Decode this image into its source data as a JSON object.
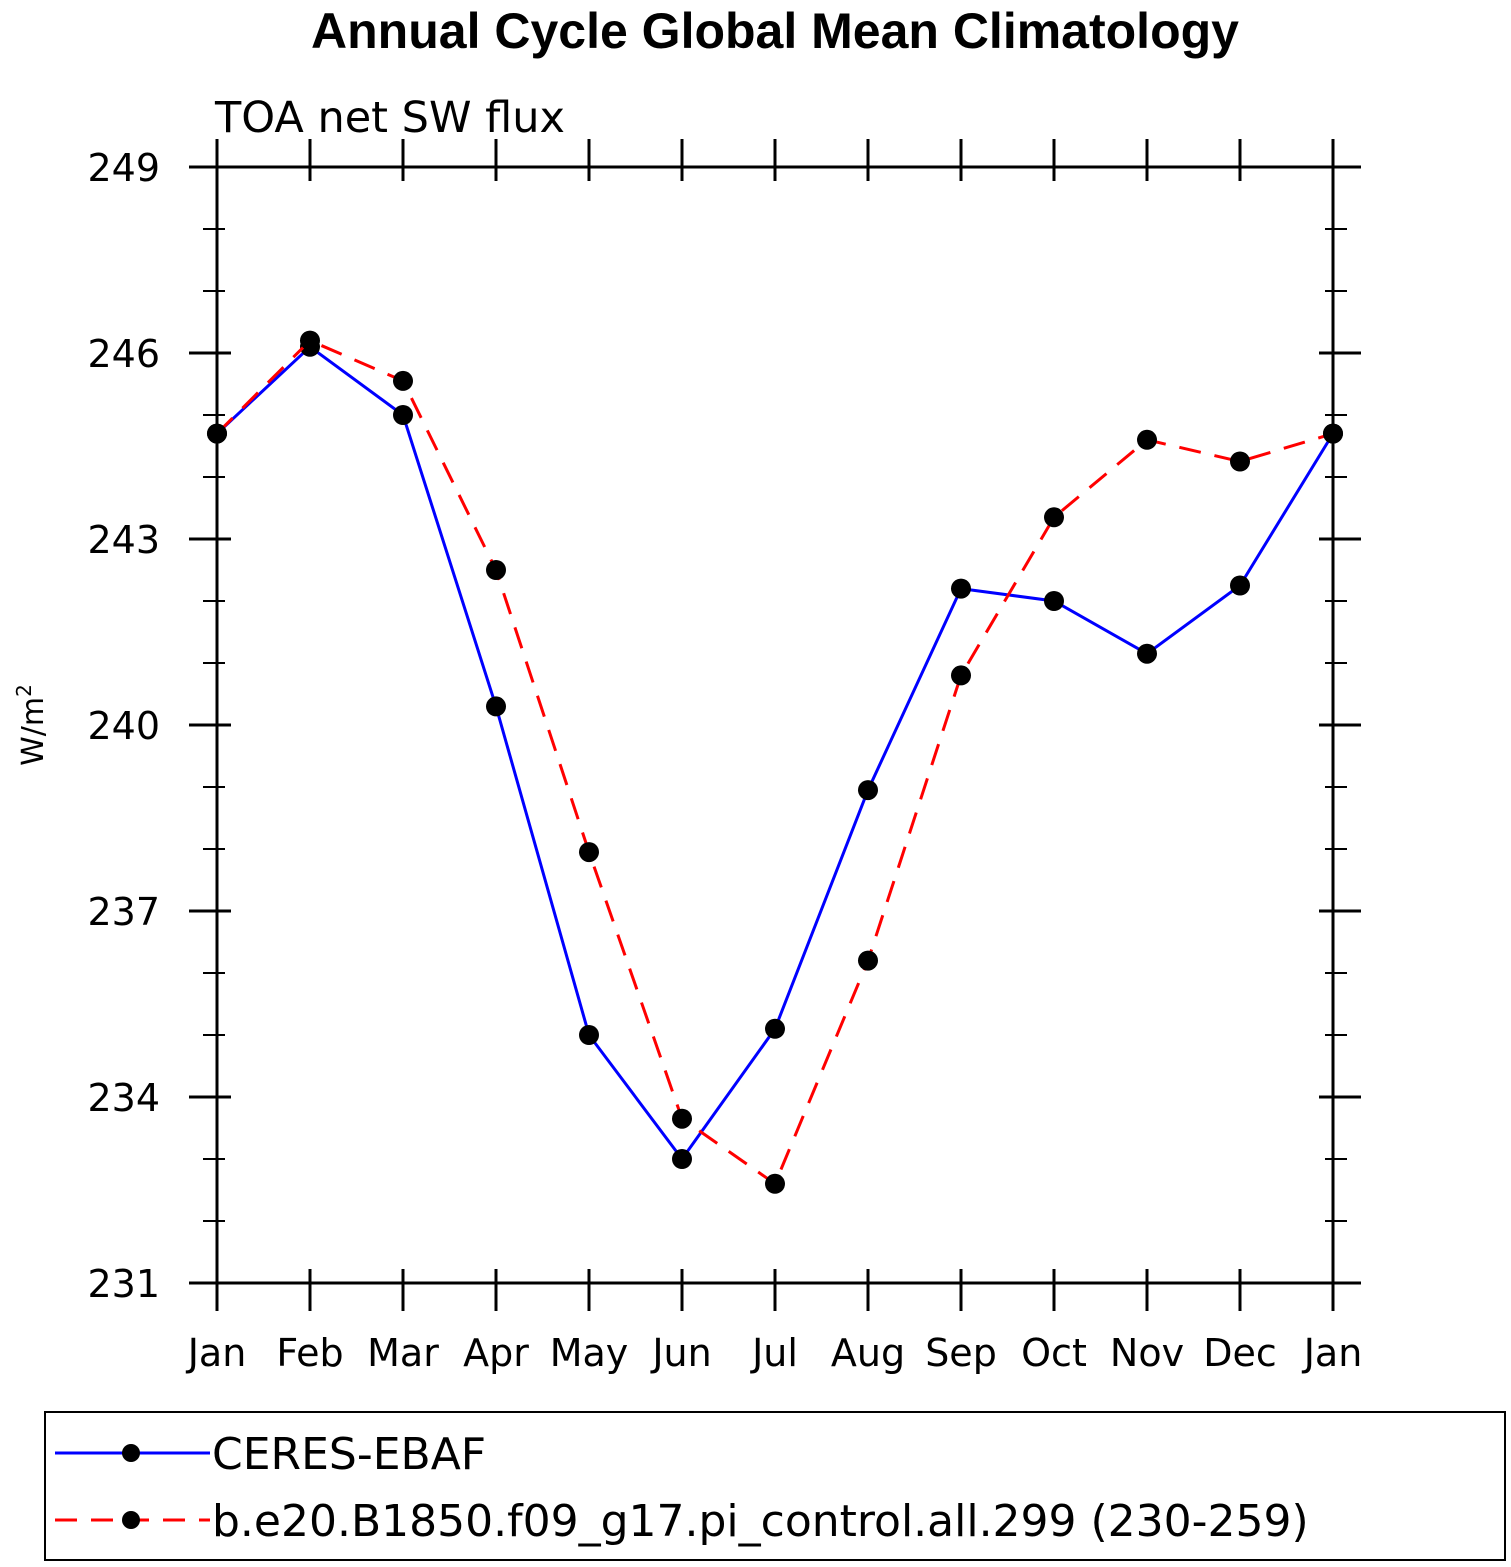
{
  "chart_data": {
    "type": "line",
    "title": "Annual Cycle Global Mean Climatology",
    "subtitle": "TOA net SW flux",
    "ylabel_base": "W/m",
    "ylabel_sup": "2",
    "xlabel": "",
    "categories": [
      "Jan",
      "Feb",
      "Mar",
      "Apr",
      "May",
      "Jun",
      "Jul",
      "Aug",
      "Sep",
      "Oct",
      "Nov",
      "Dec",
      "Jan"
    ],
    "ylim": [
      231,
      249
    ],
    "yticks": [
      231,
      234,
      237,
      240,
      243,
      246,
      249
    ],
    "ytick_labels": [
      "231",
      "234",
      "237",
      "240",
      "243",
      "246",
      "249"
    ],
    "grid": false,
    "legend_position": "bottom",
    "series": [
      {
        "name": "CERES-EBAF",
        "color": "#0000ff",
        "style": "solid",
        "values": [
          244.7,
          246.1,
          245.0,
          240.3,
          235.0,
          233.0,
          235.1,
          238.95,
          242.2,
          242.0,
          241.15,
          242.25,
          244.7
        ]
      },
      {
        "name": "b.e20.B1850.f09_g17.pi_control.all.299 (230-259)",
        "color": "#ff0000",
        "style": "dashed",
        "values": [
          244.7,
          246.2,
          245.55,
          242.5,
          237.95,
          233.65,
          232.6,
          236.2,
          240.8,
          243.35,
          244.6,
          244.25,
          244.7
        ]
      }
    ]
  }
}
